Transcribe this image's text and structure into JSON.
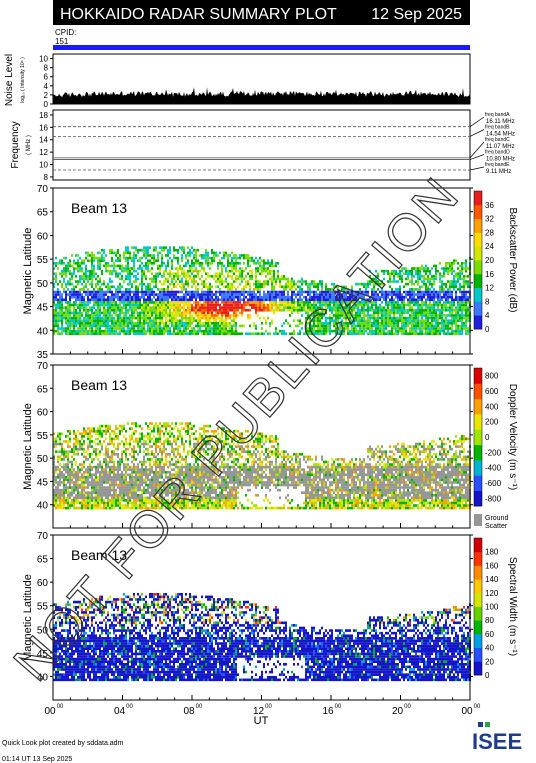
{
  "header": {
    "title": "HOKKAIDO RADAR SUMMARY PLOT",
    "date": "12 Sep 2025"
  },
  "cpid": {
    "label": "CPID:",
    "value": "151"
  },
  "noise_panel": {
    "ylabel": "Noise Level",
    "ysublabel": "log₁₀ ( Intensity 10⁶ )",
    "ticks": [
      "0",
      "2",
      "4",
      "6",
      "8",
      "10"
    ]
  },
  "freq_panel": {
    "ylabel": "Frequency",
    "yunit": "( MHz )",
    "ticks": [
      "8",
      "10",
      "12",
      "14",
      "16",
      "18"
    ],
    "bands": [
      {
        "name": "freq bandA",
        "value": "16.11 MHz",
        "mhz": 16.11
      },
      {
        "name": "freq bandB",
        "value": "14.54 MHz",
        "mhz": 14.54
      },
      {
        "name": "freq bandC",
        "value": "11.07 MHz",
        "mhz": 11.07
      },
      {
        "name": "freq bandD",
        "value": "10.80 MHz",
        "mhz": 10.8
      },
      {
        "name": "freq bandE",
        "value": "9.11 MHz",
        "mhz": 9.11
      }
    ]
  },
  "watermark": "NOT FOR PUBLICATION",
  "footer": {
    "credit": "Quick Look plot created by sddata.adm",
    "timestamp": "01:14 UT 13 Sep 2025",
    "logo": "ISEE"
  },
  "colors": {
    "blue_bar": "#1a1aff",
    "scale_power": [
      "#1e1edc",
      "#3c78ff",
      "#00c8c8",
      "#00b400",
      "#78dc00",
      "#d2e600",
      "#ffdc00",
      "#ffa000",
      "#ff5a00",
      "#e61e1e"
    ],
    "scale_velocity": [
      "#1414c8",
      "#2850ff",
      "#00b4d2",
      "#00b400",
      "#a0e600",
      "#e6e600",
      "#ffa000",
      "#ff5000",
      "#dc0000"
    ],
    "scale_width": [
      "#1414c8",
      "#2850ff",
      "#00a0e6",
      "#00b400",
      "#64d200",
      "#d2e600",
      "#ffc800",
      "#ff8c00",
      "#ff3200",
      "#d20000"
    ],
    "ground_scatter": "#969696"
  },
  "chart_data": [
    {
      "type": "heatmap",
      "panel": "backscatter power",
      "label": "Beam 13",
      "ylabel": "Magnetic Latitude",
      "yticks": [
        "35",
        "40",
        "45",
        "50",
        "55",
        "60",
        "65",
        "70"
      ],
      "ylim": [
        35,
        70
      ],
      "colorbar_label": "Backscatter Power (dB)",
      "colorbar_ticks": [
        "0",
        "4",
        "8",
        "12",
        "16",
        "20",
        "24",
        "28",
        "32",
        "36"
      ],
      "regions": [
        {
          "t0": 0,
          "t1": 24,
          "lat0": 39,
          "lat1": 57,
          "level": "low-moderate"
        },
        {
          "t0": 6,
          "t1": 12,
          "lat0": 40,
          "lat1": 48,
          "level": "high"
        }
      ]
    },
    {
      "type": "heatmap",
      "panel": "doppler velocity",
      "label": "Beam 13",
      "ylabel": "Magnetic Latitude",
      "yticks": [
        "40",
        "45",
        "50",
        "55",
        "60",
        "65",
        "70"
      ],
      "ylim": [
        35,
        70
      ],
      "colorbar_label": "Doppler Velocity (m s⁻¹)",
      "colorbar_ticks": [
        "800",
        "600",
        "400",
        "200",
        "0",
        "-200",
        "-400",
        "-600",
        "-800"
      ],
      "ground_scatter_label": [
        "Ground",
        "Scatter"
      ]
    },
    {
      "type": "heatmap",
      "panel": "spectral width",
      "label": "Beam 13",
      "ylabel": "Magnetic Latitude",
      "yticks": [
        "40",
        "45",
        "50",
        "55",
        "60",
        "65",
        "70"
      ],
      "ylim": [
        35,
        70
      ],
      "colorbar_label": "Spectral Width (m s⁻¹)",
      "colorbar_ticks": [
        "0",
        "20",
        "40",
        "60",
        "80",
        "100",
        "120",
        "140",
        "160",
        "180"
      ]
    }
  ],
  "x_axis": {
    "label": "UT",
    "ticks": [
      {
        "h": "00",
        "m": "00"
      },
      {
        "h": "04",
        "m": "00"
      },
      {
        "h": "08",
        "m": "00"
      },
      {
        "h": "12",
        "m": "00"
      },
      {
        "h": "16",
        "m": "00"
      },
      {
        "h": "20",
        "m": "00"
      },
      {
        "h": "00",
        "m": "00"
      }
    ]
  }
}
